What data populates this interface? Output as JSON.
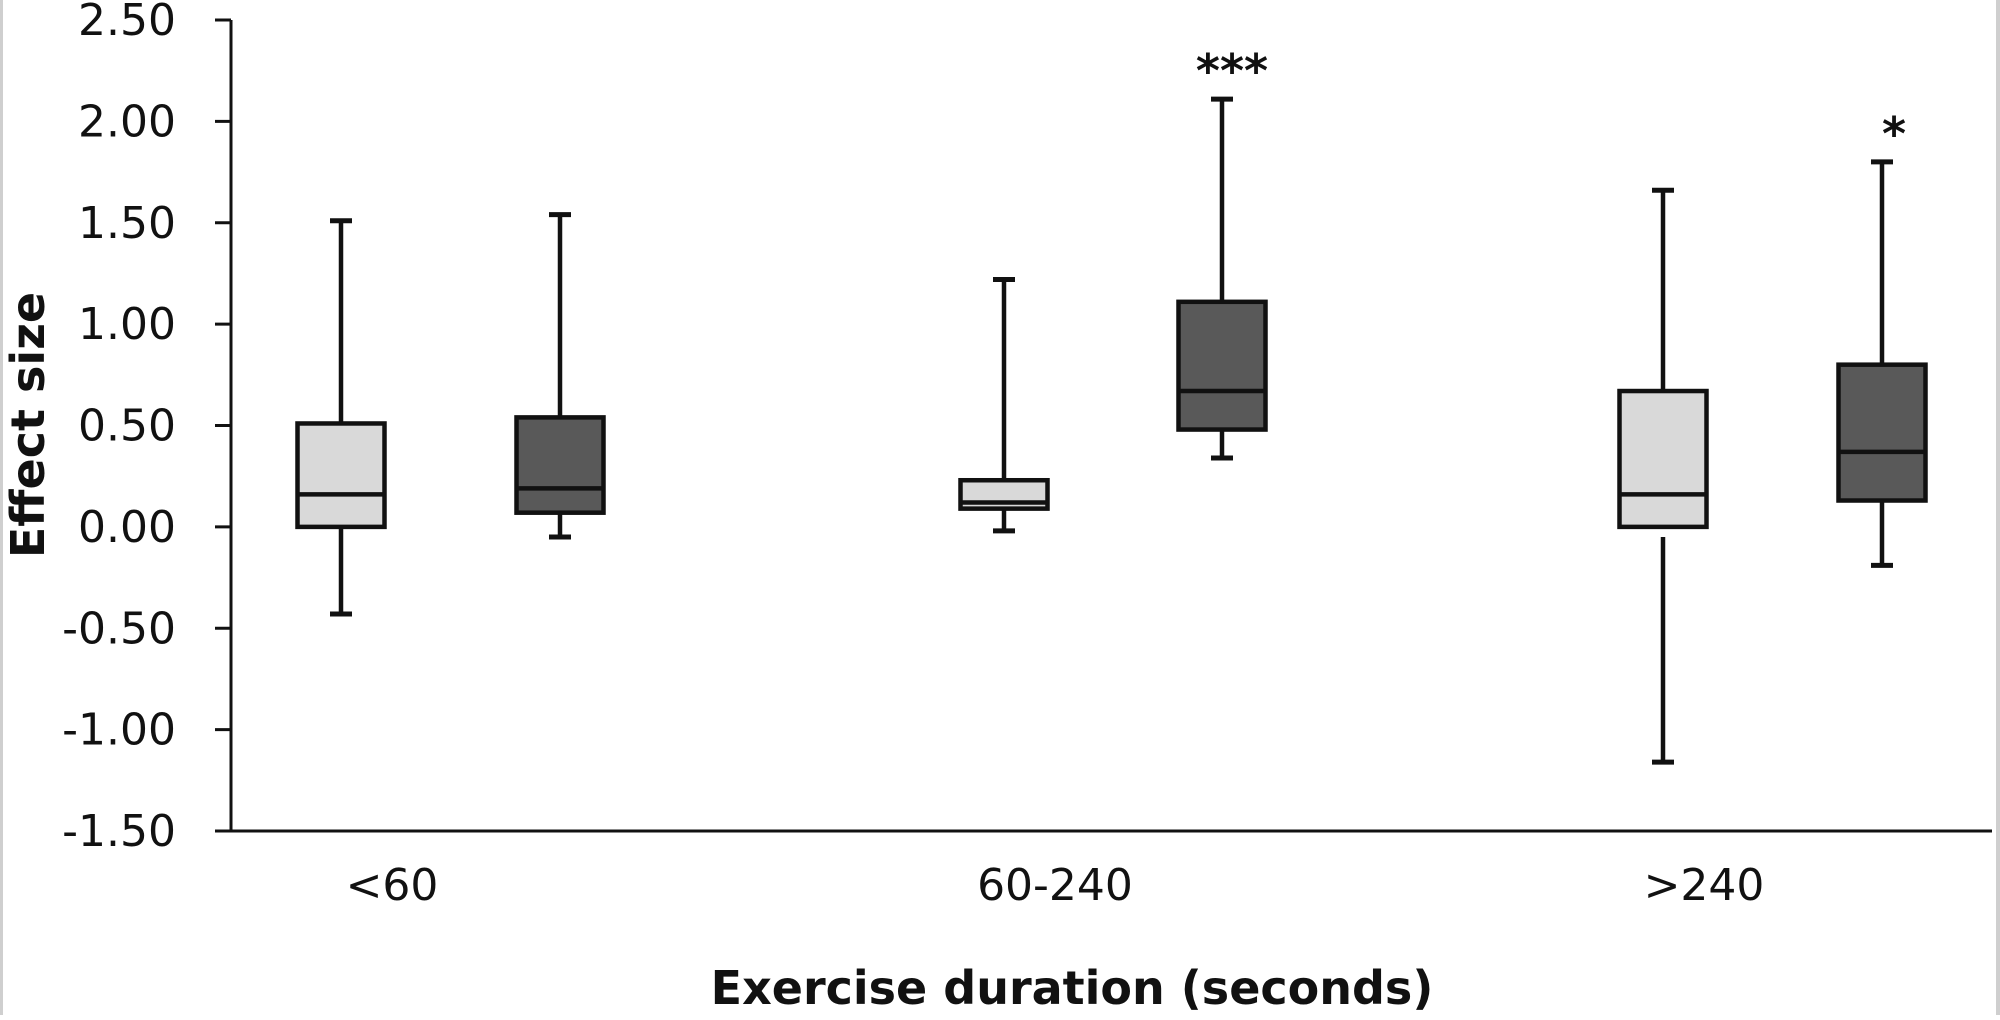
{
  "chart_data": {
    "type": "box",
    "title": "",
    "xlabel": "Exercise duration (seconds)",
    "ylabel": "Effect size",
    "ylim": [
      -1.5,
      2.5
    ],
    "yticks": [
      2.5,
      2.0,
      1.5,
      1.0,
      0.5,
      0.0,
      -0.5,
      -1.0,
      -1.5
    ],
    "ytick_labels": [
      "2.50",
      "2.00",
      "1.50",
      "1.00",
      "0.50",
      "0.00",
      "-0.50",
      "-1.00",
      "-1.50"
    ],
    "categories": [
      "<60",
      "60-240",
      ">240"
    ],
    "grid": false,
    "legend": null,
    "series": [
      {
        "name": "light",
        "color": "#d9d9d9",
        "boxes": [
          {
            "category": "<60",
            "min": -0.43,
            "q1": 0.0,
            "median": 0.16,
            "q3": 0.51,
            "max": 1.51,
            "significance": ""
          },
          {
            "category": "60-240",
            "min": -0.02,
            "q1": 0.09,
            "median": 0.12,
            "q3": 0.23,
            "max": 1.22,
            "significance": ""
          },
          {
            "category": ">240",
            "min": -1.16,
            "q1": 0.0,
            "median": 0.16,
            "q3": 0.67,
            "max": 1.66,
            "significance": "",
            "lower_whisker_start": -0.05
          }
        ]
      },
      {
        "name": "dark",
        "color": "#595959",
        "boxes": [
          {
            "category": "<60",
            "min": -0.05,
            "q1": 0.07,
            "median": 0.19,
            "q3": 0.54,
            "max": 1.54,
            "significance": ""
          },
          {
            "category": "60-240",
            "min": 0.34,
            "q1": 0.48,
            "median": 0.67,
            "q3": 1.11,
            "max": 2.11,
            "significance": "***"
          },
          {
            "category": ">240",
            "min": -0.19,
            "q1": 0.13,
            "median": 0.37,
            "q3": 0.8,
            "max": 1.8,
            "significance": "*"
          }
        ]
      }
    ]
  }
}
